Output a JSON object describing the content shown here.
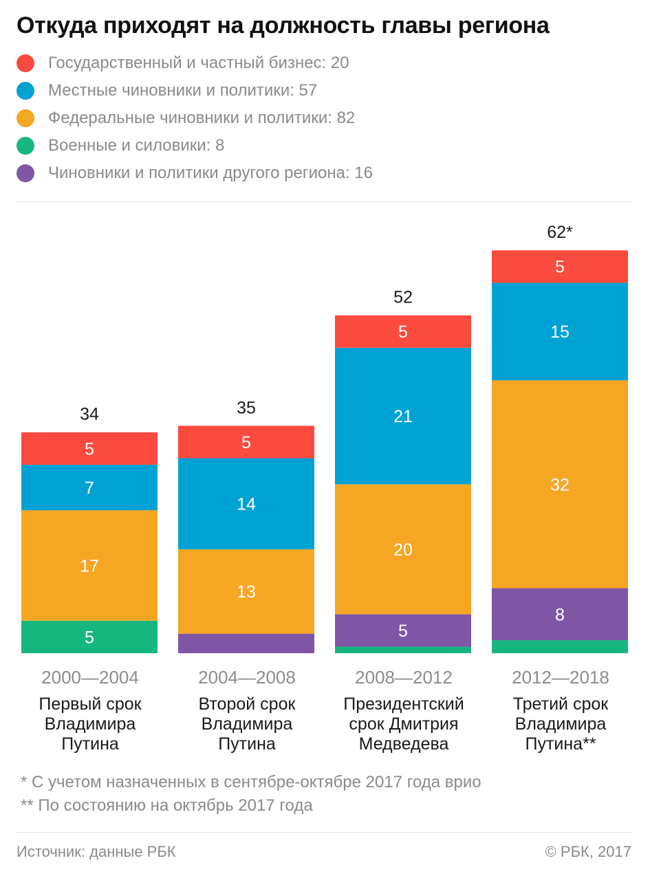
{
  "title": "Откуда приходят на должность главы региона",
  "legend": [
    {
      "label": "Государственный и частный бизнес: 20",
      "color": "#fb4a3e"
    },
    {
      "label": "Местные чиновники и политики: 57",
      "color": "#00a2d4"
    },
    {
      "label": "Федеральные чиновники и политики: 82",
      "color": "#f5a623"
    },
    {
      "label": "Военные и силовики: 8",
      "color": "#18b67f"
    },
    {
      "label": "Чиновники и политики другого региона: 16",
      "color": "#7f56a6"
    }
  ],
  "chart_data": {
    "type": "bar",
    "stacked": true,
    "categories": [
      "2000—2004",
      "2004—2008",
      "2008—2012",
      "2012—2018"
    ],
    "descriptions": [
      "Первый срок\nВладимира\nПутина",
      "Второй срок\nВладимира\nПутина",
      "Президентский\nсрок Дмитрия\nМедведева",
      "Третий срок\nВладимира\nПутина**"
    ],
    "totals": [
      "34",
      "35",
      "52",
      "62*"
    ],
    "series": [
      {
        "name": "Государственный и частный бизнес",
        "values": [
          5,
          5,
          5,
          5
        ],
        "labels": [
          "5",
          "5",
          "5",
          "5"
        ]
      },
      {
        "name": "Местные чиновники и политики",
        "values": [
          7,
          14,
          21,
          15
        ],
        "labels": [
          "7",
          "14",
          "21",
          "15"
        ]
      },
      {
        "name": "Федеральные чиновники и политики",
        "values": [
          17,
          13,
          20,
          32
        ],
        "labels": [
          "17",
          "13",
          "20",
          "32"
        ]
      },
      {
        "name": "Военные и силовики",
        "values": [
          5,
          0,
          1,
          2
        ],
        "labels": [
          "5",
          "",
          "",
          ""
        ]
      },
      {
        "name": "Чиновники и политики другого региона",
        "values": [
          0,
          3,
          5,
          8
        ],
        "labels": [
          "",
          "",
          "5",
          "8"
        ]
      }
    ]
  },
  "notes": [
    "* С учетом назначенных в сентябре-октябре 2017 года врио",
    "** По состоянию на октябрь 2017 года"
  ],
  "footer": {
    "source": "Источник: данные РБК",
    "copyright": "© РБК, 2017"
  }
}
